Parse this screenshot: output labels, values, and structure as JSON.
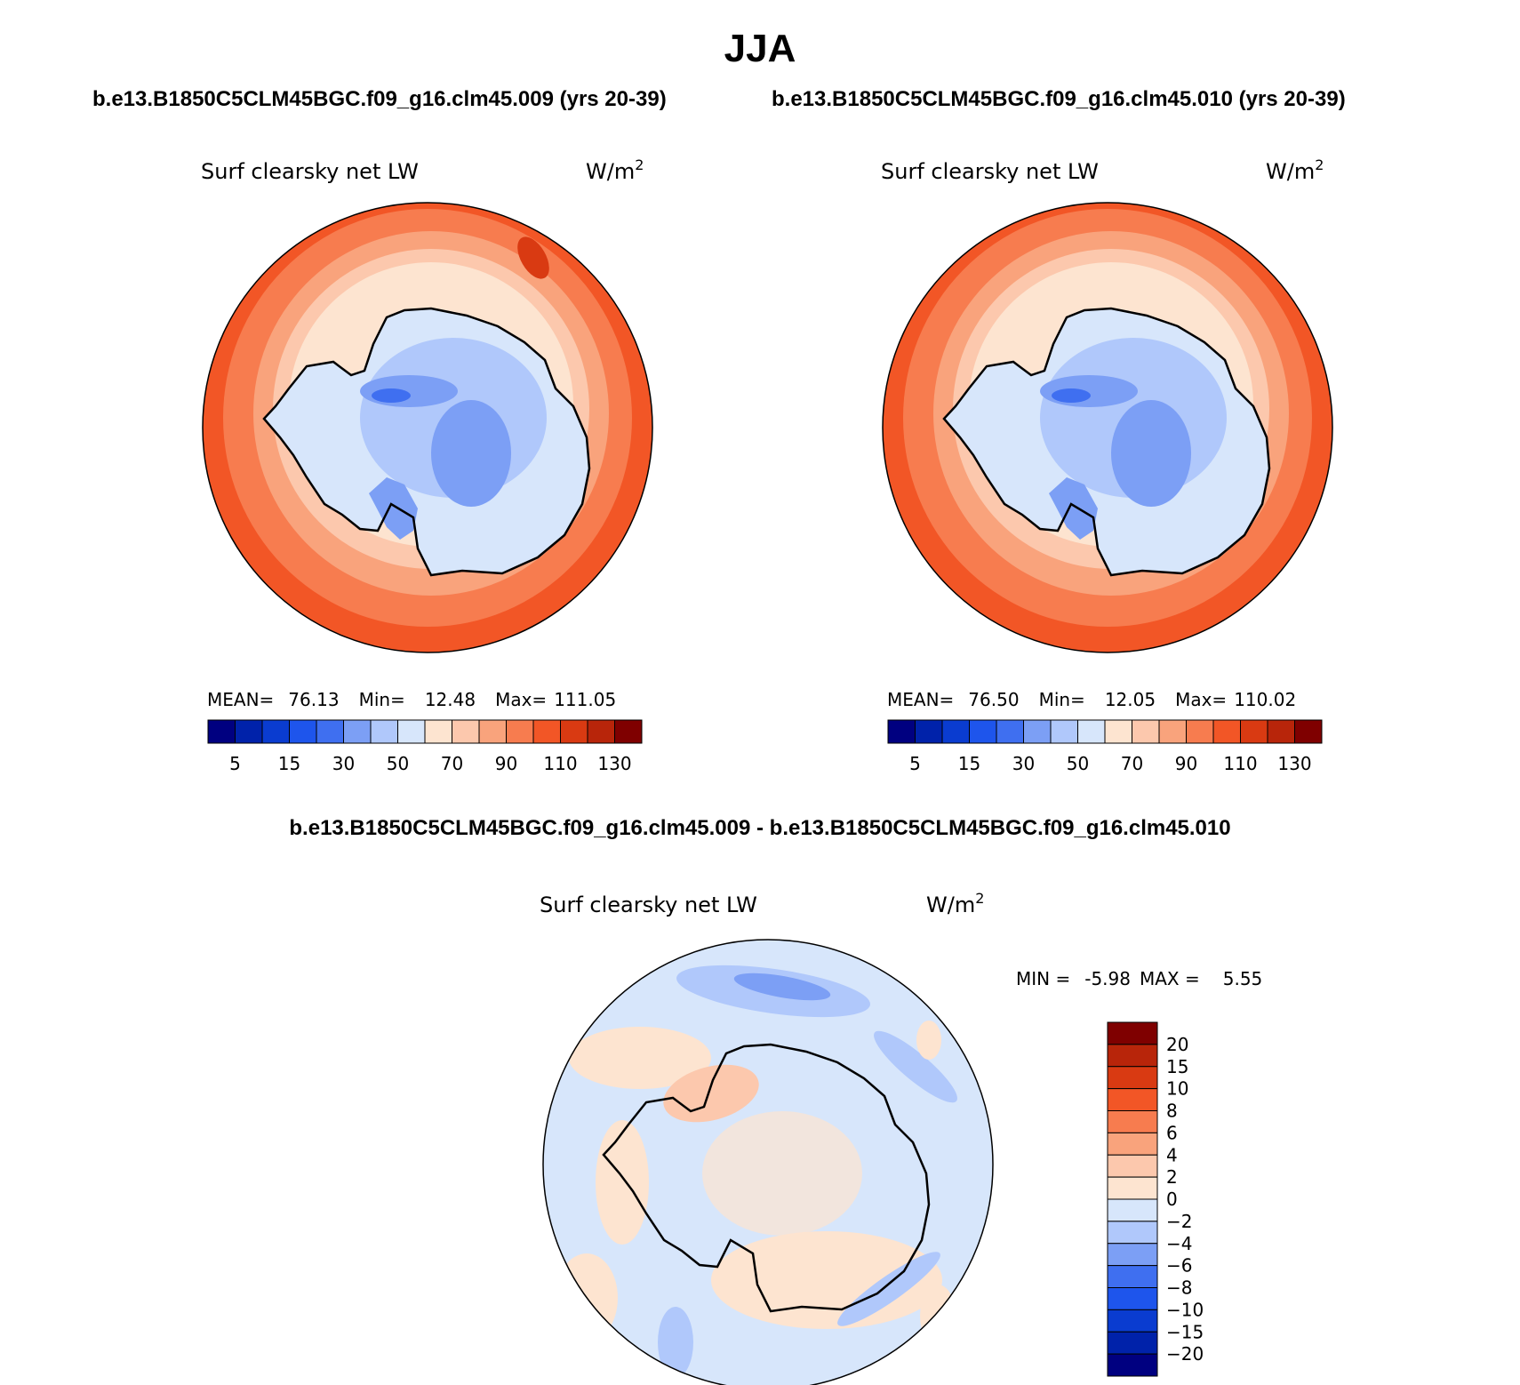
{
  "page": {
    "title": "JJA",
    "case_a_title": "b.e13.B1850C5CLM45BGC.f09_g16.clm45.009 (yrs 20-39)",
    "case_b_title": "b.e13.B1850C5CLM45BGC.f09_g16.clm45.010 (yrs 20-39)",
    "diff_title": "b.e13.B1850C5CLM45BGC.f09_g16.clm45.009 - b.e13.B1850C5CLM45BGC.f09_g16.clm45.010"
  },
  "chart_data": [
    {
      "type": "heatmap",
      "projection": "south-polar-stereographic",
      "variable": "Surf clearsky net LW",
      "units": "W/m",
      "units_exponent": "2",
      "stats": {
        "mean_label": "MEAN=",
        "mean": "76.13",
        "min_label": "Min=",
        "min": "12.48",
        "max_label": "Max=",
        "max": "111.05"
      },
      "colorbar": {
        "orientation": "horizontal",
        "tick_labels": [
          "5",
          "15",
          "30",
          "50",
          "70",
          "90",
          "110",
          "130"
        ],
        "colors": [
          "#000080",
          "#0022aa",
          "#0a3cd0",
          "#1e55ec",
          "#3f6ff0",
          "#7c9ff5",
          "#b0c8fb",
          "#d7e6fb",
          "#fde4d0",
          "#fcc8ad",
          "#f9a37c",
          "#f77c4f",
          "#f25626",
          "#d93a12",
          "#b8250a",
          "#7f0000"
        ]
      }
    },
    {
      "type": "heatmap",
      "projection": "south-polar-stereographic",
      "variable": "Surf clearsky net LW",
      "units": "W/m",
      "units_exponent": "2",
      "stats": {
        "mean_label": "MEAN=",
        "mean": "76.50",
        "min_label": "Min=",
        "min": "12.05",
        "max_label": "Max=",
        "max": "110.02"
      },
      "colorbar": {
        "orientation": "horizontal",
        "tick_labels": [
          "5",
          "15",
          "30",
          "50",
          "70",
          "90",
          "110",
          "130"
        ],
        "colors": [
          "#000080",
          "#0022aa",
          "#0a3cd0",
          "#1e55ec",
          "#3f6ff0",
          "#7c9ff5",
          "#b0c8fb",
          "#d7e6fb",
          "#fde4d0",
          "#fcc8ad",
          "#f9a37c",
          "#f77c4f",
          "#f25626",
          "#d93a12",
          "#b8250a",
          "#7f0000"
        ]
      }
    },
    {
      "type": "heatmap",
      "projection": "south-polar-stereographic",
      "variable": "Surf clearsky net LW",
      "units": "W/m",
      "units_exponent": "2",
      "stats": {
        "min_label": "MIN =",
        "min": "-5.98",
        "max_label": "MAX =",
        "max": "5.55"
      },
      "colorbar": {
        "orientation": "vertical",
        "tick_labels": [
          "20",
          "15",
          "10",
          "8",
          "6",
          "4",
          "2",
          "0",
          "−2",
          "−4",
          "−6",
          "−8",
          "−10",
          "−15",
          "−20"
        ],
        "colors": [
          "#7f0000",
          "#b8250a",
          "#d93a12",
          "#f25626",
          "#f77c4f",
          "#f9a37c",
          "#fcc8ad",
          "#fde4d0",
          "#d7e6fb",
          "#b0c8fb",
          "#7c9ff5",
          "#3f6ff0",
          "#1e55ec",
          "#0a3cd0",
          "#0022aa",
          "#000080"
        ]
      }
    }
  ]
}
